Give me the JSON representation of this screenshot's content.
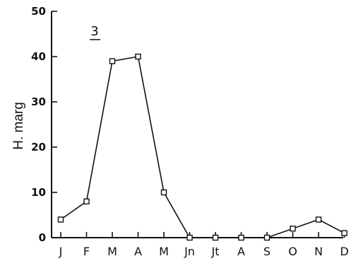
{
  "chart_data": {
    "type": "line",
    "categories": [
      "J",
      "F",
      "M",
      "A",
      "M",
      "Jn",
      "Jt",
      "A",
      "S",
      "O",
      "N",
      "D"
    ],
    "series": [
      {
        "values": [
          4,
          8,
          39,
          40,
          10,
          0,
          0,
          0,
          0,
          2,
          4,
          1
        ]
      }
    ],
    "ylabel": "H. marg",
    "xlabel": "",
    "title": "",
    "panel_label": "3",
    "ylim": [
      0,
      50
    ],
    "yticks": [
      0,
      10,
      20,
      30,
      40,
      50
    ],
    "marker": "open-square",
    "grid": false,
    "line_color": "#111111"
  }
}
